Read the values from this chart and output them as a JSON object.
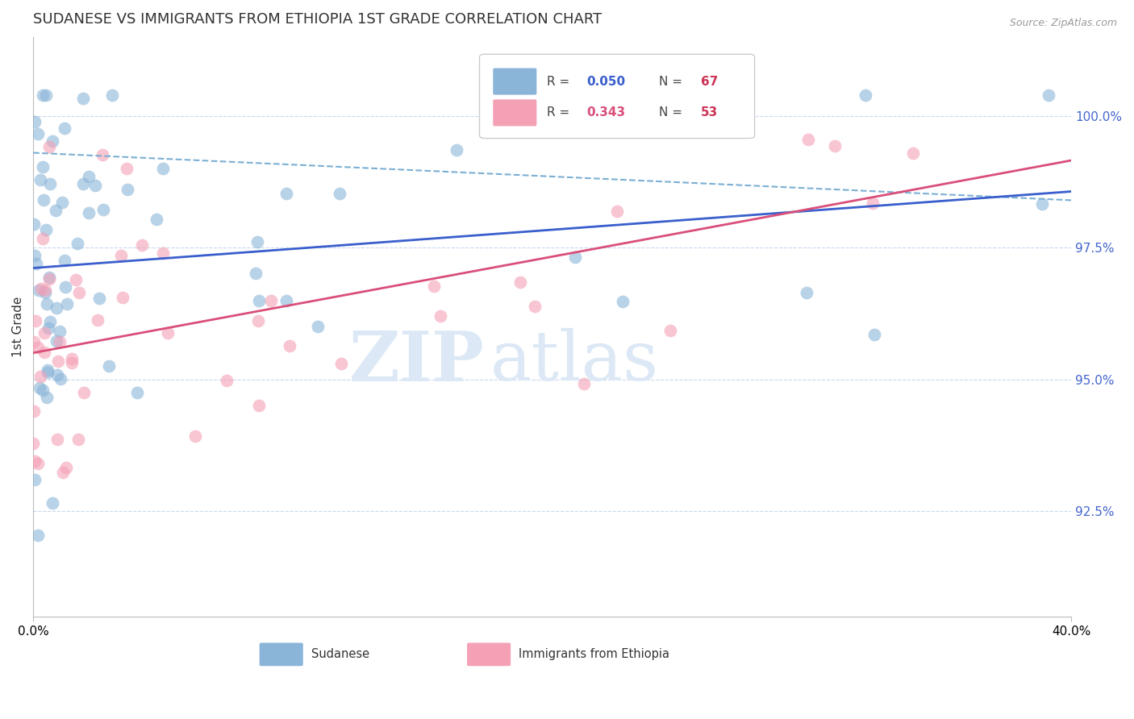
{
  "title": "SUDANESE VS IMMIGRANTS FROM ETHIOPIA 1ST GRADE CORRELATION CHART",
  "source_text": "Source: ZipAtlas.com",
  "ylabel": "1st Grade",
  "blue_R": 0.05,
  "blue_N": 67,
  "pink_R": 0.343,
  "pink_N": 53,
  "blue_label": "Sudanese",
  "pink_label": "Immigrants from Ethiopia",
  "blue_color": "#8ab4d8",
  "pink_color": "#f4a0b5",
  "blue_line_color": "#3a5fcd",
  "pink_line_color": "#d94f7a",
  "dashed_line_color": "#7bafd4",
  "grid_color": "#c8d8ee",
  "right_axis_color": "#4466cc",
  "title_color": "#333333",
  "legend_N_color": "#cc3355",
  "x_min": 0.0,
  "x_max": 0.4,
  "y_min": 0.905,
  "y_max": 1.015,
  "yticks": [
    0.925,
    0.95,
    0.975,
    1.0
  ],
  "ytick_labels": [
    "92.5%",
    "95.0%",
    "97.5%",
    "100.0%"
  ],
  "watermark_zip": "ZIP",
  "watermark_atlas": "atlas",
  "watermark_color": "#dce8f5"
}
